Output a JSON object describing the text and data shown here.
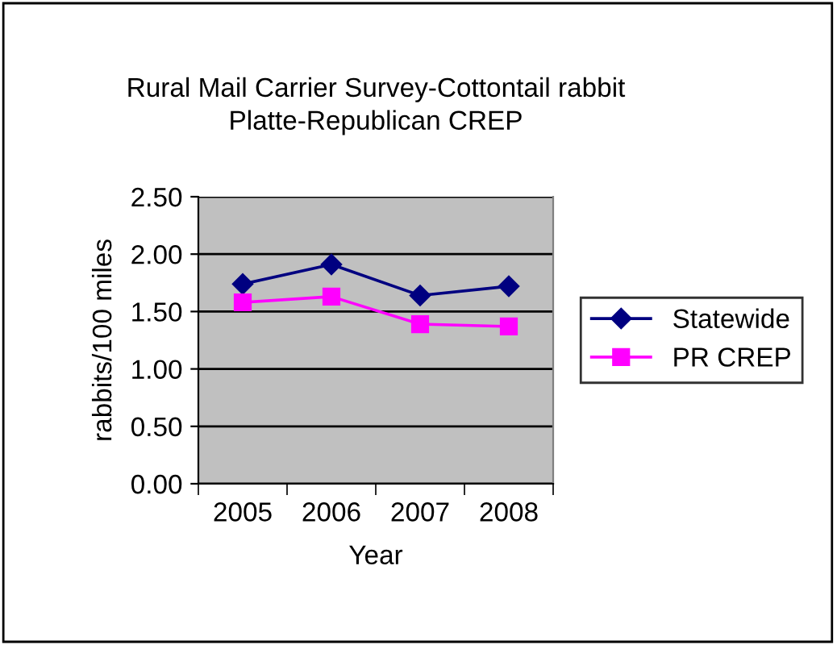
{
  "chart_data": {
    "type": "line",
    "title": "Rural Mail Carrier Survey-Cottontail rabbit\nPlatte-Republican CREP",
    "xlabel": "Year",
    "ylabel": "rabbits/100 miles",
    "categories": [
      "2005",
      "2006",
      "2007",
      "2008"
    ],
    "series": [
      {
        "name": "Statewide",
        "color": "#000080",
        "marker": "diamond",
        "values": [
          1.74,
          1.91,
          1.64,
          1.72
        ]
      },
      {
        "name": "PR CREP",
        "color": "#ff00ff",
        "marker": "square",
        "values": [
          1.58,
          1.63,
          1.39,
          1.37
        ]
      }
    ],
    "ylim": [
      0,
      2.5
    ],
    "yticks": [
      {
        "value": 0,
        "label": "0.00"
      },
      {
        "value": 0.5,
        "label": "0.50"
      },
      {
        "value": 1,
        "label": "1.00"
      },
      {
        "value": 1.5,
        "label": "1.50"
      },
      {
        "value": 2,
        "label": "2.00"
      },
      {
        "value": 2.5,
        "label": "2.50"
      }
    ],
    "grid": "y",
    "legend": "right",
    "line_style": "solid"
  }
}
